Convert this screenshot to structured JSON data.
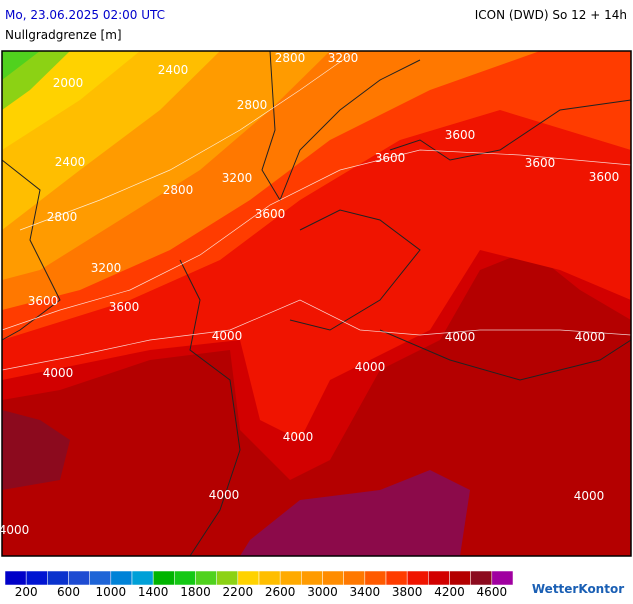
{
  "header": {
    "date": "Mo, 23.06.2025 02:00 UTC",
    "model": "ICON (DWD) So 12 + 14h",
    "subtitle": "Nullgradgrenze [m]"
  },
  "map": {
    "contour_labels": [
      2800,
      3200,
      2400,
      2000,
      2800,
      3600,
      3600,
      3600,
      3600,
      3200,
      2800,
      2400,
      2800,
      3600,
      3200,
      3600,
      3600,
      4000,
      4000,
      4000,
      4000,
      4000,
      4000,
      4000,
      4000,
      4000
    ]
  },
  "legend": {
    "range": [
      0,
      4800
    ],
    "ticks": [
      200,
      600,
      1000,
      1400,
      1800,
      2200,
      2600,
      3000,
      3400,
      3800,
      4200,
      4600
    ],
    "colors": [
      "#0000c8",
      "#0014d2",
      "#0a32cd",
      "#1e4bd2",
      "#1e64d7",
      "#0082d7",
      "#00a0d7",
      "#00b400",
      "#14c814",
      "#50d21e",
      "#8cd214",
      "#ffd200",
      "#ffbe00",
      "#ffaa00",
      "#ff9b00",
      "#ff8c00",
      "#ff7800",
      "#ff5a00",
      "#ff3c00",
      "#f01400",
      "#d20000",
      "#b40000",
      "#8c0a1e",
      "#a000a0"
    ]
  },
  "logo": {
    "text": "WetterKontor"
  }
}
